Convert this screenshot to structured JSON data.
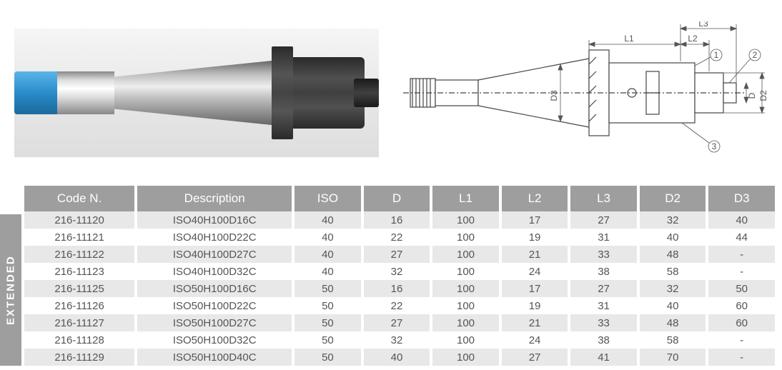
{
  "labels": {
    "extended": "EXTENDED"
  },
  "diagram": {
    "dimensions": {
      "L1": "L1",
      "L2": "L2",
      "L3": "L3",
      "D": "D",
      "D2": "D2",
      "D3": "D3"
    },
    "callouts": [
      "1",
      "2",
      "3"
    ],
    "stroke": "#444444",
    "dim_stroke": "#555555",
    "fill_body": "#ffffff"
  },
  "table": {
    "header_bg": "#9e9e9e",
    "header_fg": "#ffffff",
    "row_odd_bg": "#e8e8e8",
    "row_even_bg": "#ffffff",
    "cell_fg": "#555555",
    "columns": [
      {
        "key": "code",
        "label": "Code N.",
        "class": "col-code"
      },
      {
        "key": "desc",
        "label": "Description",
        "class": "col-desc"
      },
      {
        "key": "iso",
        "label": "ISO",
        "class": "col-sm"
      },
      {
        "key": "d",
        "label": "D",
        "class": "col-sm"
      },
      {
        "key": "l1",
        "label": "L1",
        "class": "col-sm"
      },
      {
        "key": "l2",
        "label": "L2",
        "class": "col-sm"
      },
      {
        "key": "l3",
        "label": "L3",
        "class": "col-sm"
      },
      {
        "key": "d2",
        "label": "D2",
        "class": "col-sm"
      },
      {
        "key": "d3",
        "label": "D3",
        "class": "col-sm"
      }
    ],
    "rows": [
      {
        "code": "216-11120",
        "desc": "ISO40H100D16C",
        "iso": "40",
        "d": "16",
        "l1": "100",
        "l2": "17",
        "l3": "27",
        "d2": "32",
        "d3": "40"
      },
      {
        "code": "216-11121",
        "desc": "ISO40H100D22C",
        "iso": "40",
        "d": "22",
        "l1": "100",
        "l2": "19",
        "l3": "31",
        "d2": "40",
        "d3": "44"
      },
      {
        "code": "216-11122",
        "desc": "ISO40H100D27C",
        "iso": "40",
        "d": "27",
        "l1": "100",
        "l2": "21",
        "l3": "33",
        "d2": "48",
        "d3": "-"
      },
      {
        "code": "216-11123",
        "desc": "ISO40H100D32C",
        "iso": "40",
        "d": "32",
        "l1": "100",
        "l2": "24",
        "l3": "38",
        "d2": "58",
        "d3": "-"
      },
      {
        "code": "216-11125",
        "desc": "ISO50H100D16C",
        "iso": "50",
        "d": "16",
        "l1": "100",
        "l2": "17",
        "l3": "27",
        "d2": "32",
        "d3": "50"
      },
      {
        "code": "216-11126",
        "desc": "ISO50H100D22C",
        "iso": "50",
        "d": "22",
        "l1": "100",
        "l2": "19",
        "l3": "31",
        "d2": "40",
        "d3": "60"
      },
      {
        "code": "216-11127",
        "desc": "ISO50H100D27C",
        "iso": "50",
        "d": "27",
        "l1": "100",
        "l2": "21",
        "l3": "33",
        "d2": "48",
        "d3": "60"
      },
      {
        "code": "216-11128",
        "desc": "ISO50H100D32C",
        "iso": "50",
        "d": "32",
        "l1": "100",
        "l2": "24",
        "l3": "38",
        "d2": "58",
        "d3": "-"
      },
      {
        "code": "216-11129",
        "desc": "ISO50H100D40C",
        "iso": "50",
        "d": "40",
        "l1": "100",
        "l2": "27",
        "l3": "41",
        "d2": "70",
        "d3": "-"
      }
    ]
  }
}
